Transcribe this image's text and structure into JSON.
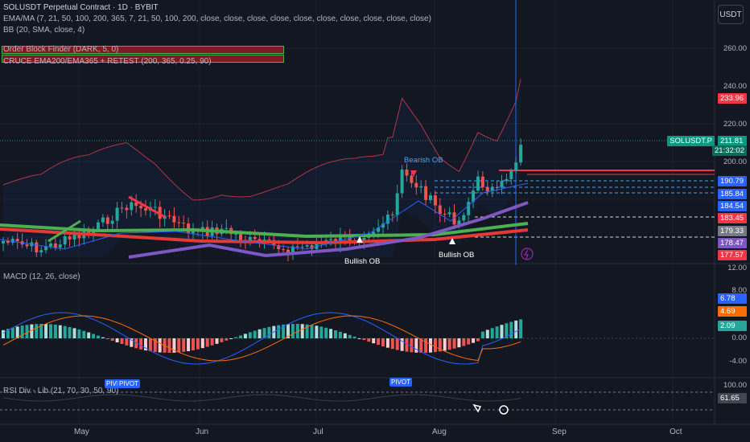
{
  "header": {
    "title": "SOLUSDT Perpetual Contract · 1D · BYBIT",
    "indicators": [
      "EMA/MA (7, 21, 50, 100, 200, 365, 7, 21, 50, 100, 200, close, close, close, close, close, close, close, close, close, close)",
      "BB (20, SMA, close, 4)",
      "Order Block Finder (DARK, 5, 0)",
      "CRUCE EMA200/EMA365 + RETEST (200, 365, 0.25, 90)"
    ],
    "currency": "USDT"
  },
  "price_axis": {
    "ticks": [
      "260.00",
      "240.00",
      "220.00",
      "200.00"
    ]
  },
  "price_labels": [
    {
      "text": "233.96",
      "color": "#f23645"
    },
    {
      "text": "SOLUSDT.P",
      "color": "#089981"
    },
    {
      "text": "211.81",
      "color": "#089981"
    },
    {
      "text": "21:32:02",
      "color": "#089981"
    },
    {
      "text": "190.79",
      "color": "#2962ff"
    },
    {
      "text": "185.84",
      "color": "#2962ff"
    },
    {
      "text": "184.54",
      "color": "#2962ff"
    },
    {
      "text": "183.45",
      "color": "#f23645"
    },
    {
      "text": "179.33",
      "color": "#787b86"
    },
    {
      "text": "178.47",
      "color": "#7e57c2"
    },
    {
      "text": "177.57",
      "color": "#f23645"
    }
  ],
  "annotations": {
    "bearish_ob": "Bearish OB",
    "bullish_ob_1": "Bullish OB",
    "bullish_ob_2": "Bullish OB"
  },
  "macd": {
    "label": "MACD (12, 26, close)",
    "ticks": [
      "12.00",
      "8.00",
      "0.00",
      "-4.00"
    ],
    "values": [
      {
        "text": "6.78",
        "color": "#2962ff"
      },
      {
        "text": "4.69",
        "color": "#ff6d00"
      },
      {
        "text": "2.09",
        "color": "#26a69a"
      }
    ]
  },
  "rsi": {
    "label": "RSI Div - Lib (21, 70, 30, 50, 90)",
    "ticks": [
      "100.00"
    ],
    "value": "61.65",
    "pivots": [
      "PIVI",
      "PIVOT",
      "PIVOT"
    ]
  },
  "time_axis": [
    "May",
    "Jun",
    "Jul",
    "Aug",
    "Sep",
    "Oct"
  ]
}
